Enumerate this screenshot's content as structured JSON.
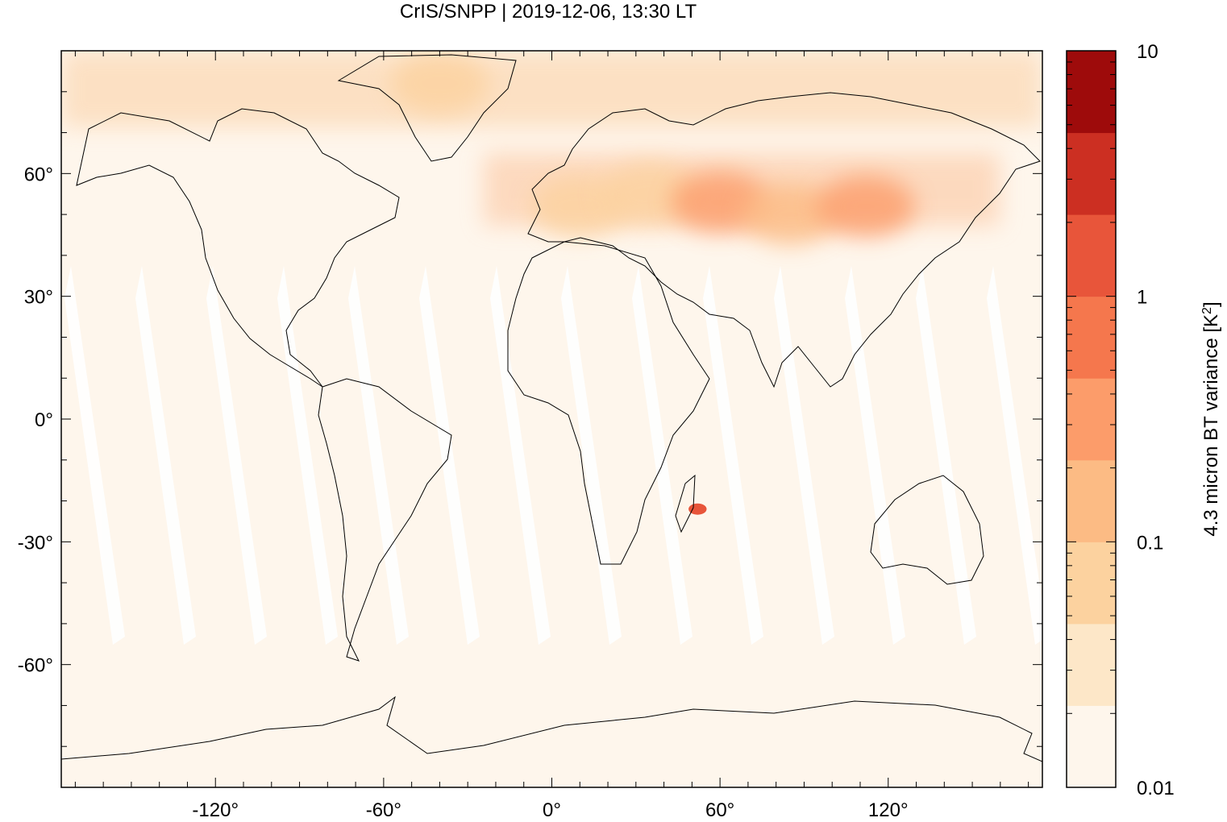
{
  "title": "CrIS/SNPP | 2019-12-06, 13:30 LT",
  "map": {
    "projection": "equirectangular",
    "lon_range": [
      -175,
      175
    ],
    "lat_range": [
      -90,
      90
    ],
    "background_color": "#fef6ec",
    "coastline_color": "#000000",
    "x_tick_labels": [
      {
        "value": -120,
        "label": "-120°"
      },
      {
        "value": -60,
        "label": "-60°"
      },
      {
        "value": 0,
        "label": "0°"
      },
      {
        "value": 60,
        "label": "60°"
      },
      {
        "value": 120,
        "label": "120°"
      }
    ],
    "y_tick_labels": [
      {
        "value": 60,
        "label": "60°"
      },
      {
        "value": 30,
        "label": "30°"
      },
      {
        "value": 0,
        "label": "0°"
      },
      {
        "value": -30,
        "label": "-30°"
      },
      {
        "value": -60,
        "label": "-60°"
      }
    ],
    "hot_spots": [
      {
        "lon": 10,
        "lat": 52,
        "level": 2
      },
      {
        "lon": 35,
        "lat": 55,
        "level": 2
      },
      {
        "lon": 60,
        "lat": 53,
        "level": 4
      },
      {
        "lon": 85,
        "lat": 50,
        "level": 3
      },
      {
        "lon": 112,
        "lat": 52,
        "level": 4
      },
      {
        "lon": -40,
        "lat": 82,
        "level": 2
      },
      {
        "lon": 52,
        "lat": -22,
        "level": 6
      }
    ]
  },
  "colorbar": {
    "label_main": "4.3 micron BT variance [K",
    "label_sup": "2",
    "label_end": "]",
    "scale": "log",
    "range": [
      0.01,
      10
    ],
    "tick_labels": [
      {
        "value": 10,
        "label": "10"
      },
      {
        "value": 1,
        "label": "1"
      },
      {
        "value": 0.1,
        "label": "0.1"
      },
      {
        "value": 0.01,
        "label": "0.01"
      }
    ],
    "colors": [
      "#fef6ec",
      "#fde7c8",
      "#fcd29f",
      "#fcbb84",
      "#fc9c6a",
      "#f5774d",
      "#e8553a",
      "#cc2f22",
      "#9e0b0b"
    ]
  }
}
